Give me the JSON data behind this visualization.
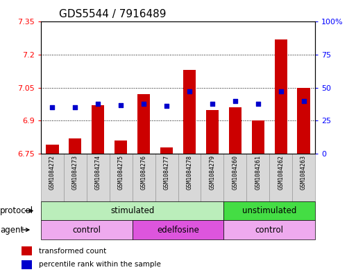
{
  "title": "GDS5544 / 7916489",
  "samples": [
    "GSM1084272",
    "GSM1084273",
    "GSM1084274",
    "GSM1084275",
    "GSM1084276",
    "GSM1084277",
    "GSM1084278",
    "GSM1084279",
    "GSM1084260",
    "GSM1084261",
    "GSM1084262",
    "GSM1084263"
  ],
  "bar_values": [
    6.79,
    6.82,
    6.97,
    6.81,
    7.02,
    6.78,
    7.13,
    6.95,
    6.96,
    6.9,
    7.27,
    7.05
  ],
  "percentile_values": [
    35,
    35,
    38,
    37,
    38,
    36,
    47,
    38,
    40,
    38,
    47,
    40
  ],
  "ymin": 6.75,
  "ymax": 7.35,
  "yticks": [
    6.75,
    6.9,
    7.05,
    7.2,
    7.35
  ],
  "ytick_labels": [
    "6.75",
    "6.9",
    "7.05",
    "7.2",
    "7.35"
  ],
  "y2min": 0,
  "y2max": 100,
  "y2ticks": [
    0,
    25,
    50,
    75,
    100
  ],
  "y2tick_labels": [
    "0",
    "25",
    "50",
    "75",
    "100%"
  ],
  "bar_color": "#cc0000",
  "dot_color": "#0000cc",
  "bar_bottom": 6.75,
  "protocol_groups": [
    {
      "label": "stimulated",
      "start": 0,
      "end": 8,
      "color": "#bbeebb"
    },
    {
      "label": "unstimulated",
      "start": 8,
      "end": 12,
      "color": "#44dd44"
    }
  ],
  "agent_groups": [
    {
      "label": "control",
      "start": 0,
      "end": 4,
      "color": "#eeaaee"
    },
    {
      "label": "edelfosine",
      "start": 4,
      "end": 8,
      "color": "#dd55dd"
    },
    {
      "label": "control",
      "start": 8,
      "end": 12,
      "color": "#eeaaee"
    }
  ],
  "legend_bar_label": "transformed count",
  "legend_dot_label": "percentile rank within the sample",
  "protocol_label": "protocol",
  "agent_label": "agent",
  "title_fontsize": 11,
  "tick_fontsize": 8,
  "label_fontsize": 8.5,
  "sample_bg_color": "#d8d8d8",
  "sample_border_color": "#999999"
}
